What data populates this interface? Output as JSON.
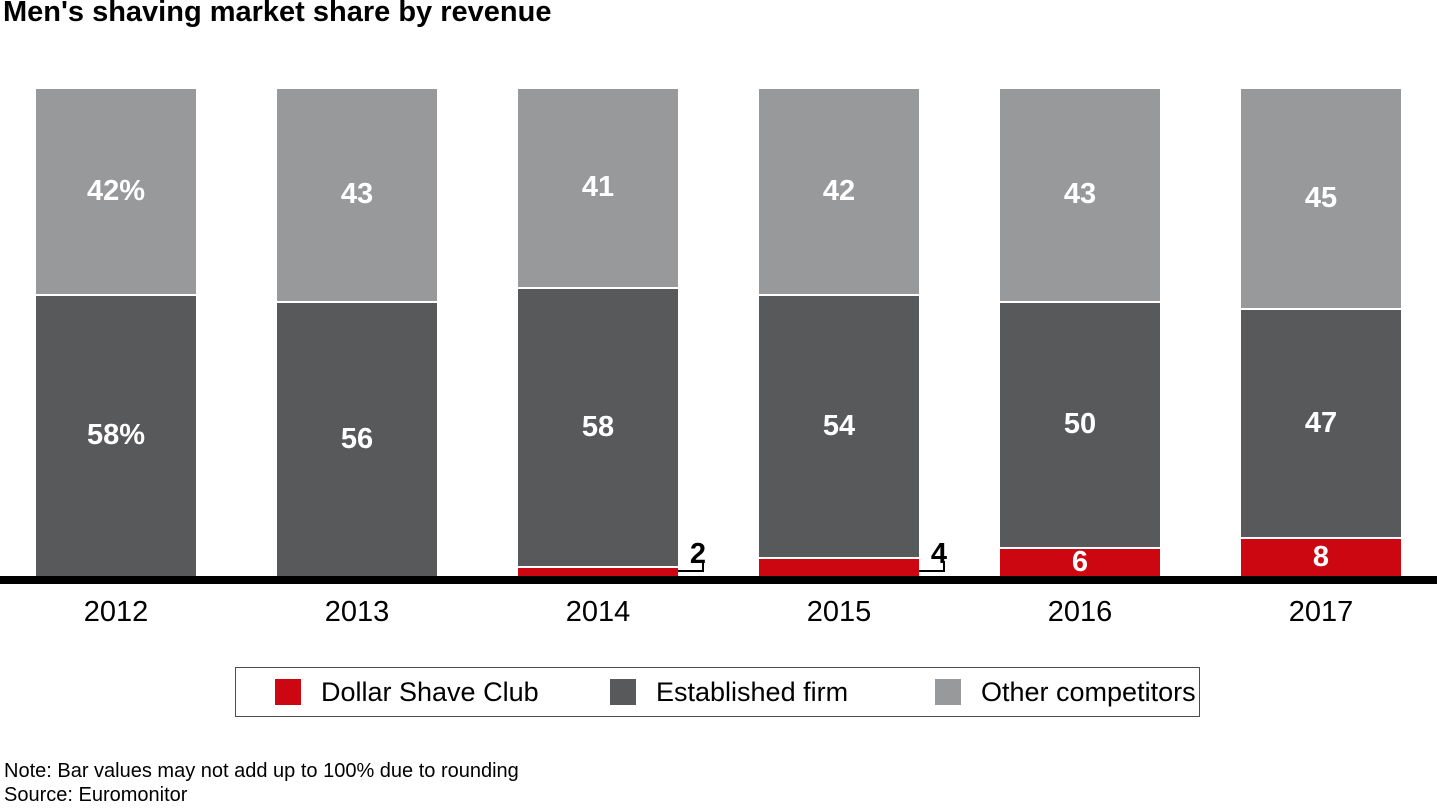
{
  "title": "Men's shaving market share by revenue",
  "chart_data": {
    "type": "bar",
    "stacked": true,
    "title": "Men's shaving market share by revenue",
    "categories": [
      "2012",
      "2013",
      "2014",
      "2015",
      "2016",
      "2017"
    ],
    "series": [
      {
        "name": "Dollar Shave Club",
        "color": "#cc0712",
        "values": [
          0,
          0,
          2,
          4,
          6,
          8
        ]
      },
      {
        "name": "Established firm",
        "color": "#58595b",
        "values": [
          58,
          56,
          58,
          54,
          50,
          47
        ]
      },
      {
        "name": "Other competitors",
        "color": "#98999b",
        "values": [
          42,
          43,
          41,
          42,
          43,
          45
        ]
      }
    ],
    "series_colors": {
      "dsc": "#cc0712",
      "est": "#58595b",
      "other": "#98999b"
    },
    "axis_line_color": "#000000",
    "legend_position": "bottom",
    "ylim": [
      0,
      100
    ],
    "grid": false,
    "bars": [
      {
        "category": "2012",
        "segments": [
          {
            "series": "other",
            "value": 42,
            "label": "42%"
          },
          {
            "series": "est",
            "value": 58,
            "label": "58%"
          },
          {
            "series": "dsc",
            "value": 0,
            "label": ""
          }
        ]
      },
      {
        "category": "2013",
        "segments": [
          {
            "series": "other",
            "value": 43,
            "label": "43"
          },
          {
            "series": "est",
            "value": 56,
            "label": "56"
          },
          {
            "series": "dsc",
            "value": 0,
            "label": ""
          }
        ]
      },
      {
        "category": "2014",
        "segments": [
          {
            "series": "other",
            "value": 41,
            "label": "41"
          },
          {
            "series": "est",
            "value": 58,
            "label": "58"
          },
          {
            "series": "dsc",
            "value": 2,
            "label": "2",
            "callout": true
          }
        ]
      },
      {
        "category": "2015",
        "segments": [
          {
            "series": "other",
            "value": 42,
            "label": "42"
          },
          {
            "series": "est",
            "value": 54,
            "label": "54"
          },
          {
            "series": "dsc",
            "value": 4,
            "label": "4",
            "callout": true
          }
        ]
      },
      {
        "category": "2016",
        "segments": [
          {
            "series": "other",
            "value": 43,
            "label": "43"
          },
          {
            "series": "est",
            "value": 50,
            "label": "50"
          },
          {
            "series": "dsc",
            "value": 6,
            "label": "6"
          }
        ]
      },
      {
        "category": "2017",
        "segments": [
          {
            "series": "other",
            "value": 45,
            "label": "45"
          },
          {
            "series": "est",
            "value": 47,
            "label": "47"
          },
          {
            "series": "dsc",
            "value": 8,
            "label": "8"
          }
        ]
      }
    ]
  },
  "legend": {
    "items": [
      {
        "key": "dsc",
        "label": "Dollar Shave Club",
        "color": "#cc0712"
      },
      {
        "key": "est",
        "label": "Established firm",
        "color": "#58595b"
      },
      {
        "key": "other",
        "label": "Other competitors",
        "color": "#98999b"
      }
    ]
  },
  "notes": {
    "note": "Note: Bar values may not add up to 100% due to rounding",
    "source": "Source: Euromonitor"
  }
}
